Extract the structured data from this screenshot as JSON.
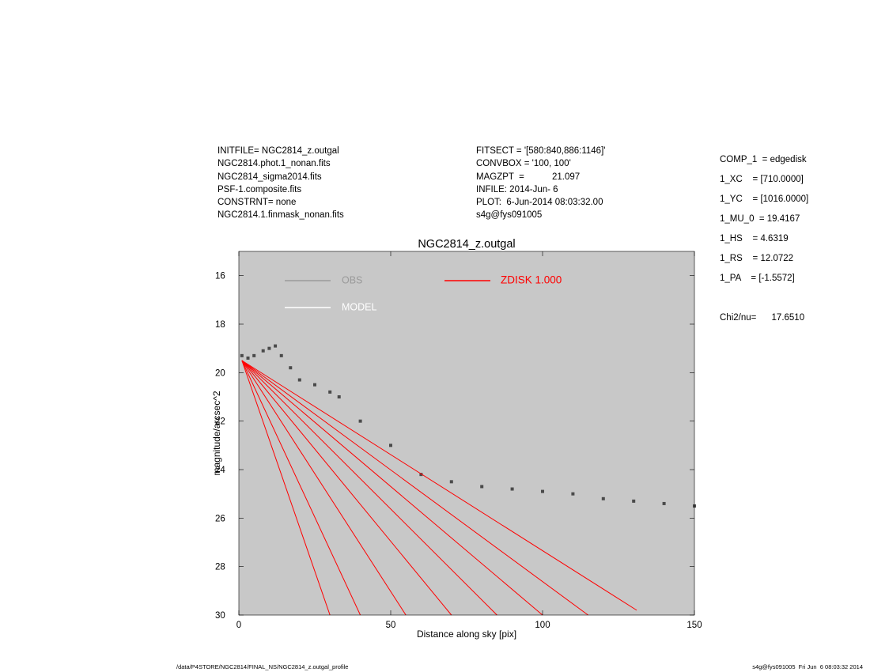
{
  "header_left": [
    "INITFILE= NGC2814_z.outgal",
    "NGC2814.phot.1_nonan.fits",
    "NGC2814_sigma2014.fits",
    "PSF-1.composite.fits",
    "CONSTRNT= none",
    "NGC2814.1.finmask_nonan.fits"
  ],
  "header_mid": [
    "FITSECT = '[580:840,886:1146]'",
    "CONVBOX = '100, 100'",
    "MAGZPT  =           21.097",
    "INFILE: 2014-Jun- 6",
    "PLOT:  6-Jun-2014 08:03:32.00",
    "s4g@fys091005"
  ],
  "params": [
    "COMP_1  = edgedisk",
    "1_XC    = [710.0000]",
    "1_YC    = [1016.0000]",
    "1_MU_0  = 19.4167",
    "1_HS    = 4.6319",
    "1_RS    = 12.0722",
    "1_PA    = [-1.5572]",
    "",
    "Chi2/nu=      17.6510"
  ],
  "footer": {
    "left": "/data/P4STORE/NGC2814/FINAL_NS/NGC2814_z.outgal_profile",
    "right": "s4g@fys091005  Fri Jun  6 08:03:32 2014"
  },
  "colors": {
    "background": "#c8c8c8",
    "obs": "#4a4a4a",
    "obs_legend": "#9a9a9a",
    "model": "#ffffff",
    "component": "#ff0000"
  },
  "chart_data": {
    "type": "scatter",
    "title": "NGC2814_z.outgal",
    "xlabel": "Distance along sky [pix]",
    "ylabel": "magnitude/arcsec^2",
    "xlim": [
      0,
      150
    ],
    "ylim": [
      30,
      15
    ],
    "y_inverted": true,
    "grid": false,
    "x_ticks": [
      0,
      50,
      100,
      150
    ],
    "y_ticks": [
      16,
      18,
      20,
      22,
      24,
      26,
      28,
      30
    ],
    "legend": [
      {
        "label": "OBS",
        "color": "#9a9a9a"
      },
      {
        "label": "MODEL",
        "color": "#ffffff"
      },
      {
        "label": "ZDISK  1.000",
        "color": "#ff0000"
      }
    ],
    "legend_position": "top",
    "series": [
      {
        "name": "OBS",
        "kind": "points",
        "x": [
          1,
          3,
          5,
          8,
          10,
          12,
          14,
          17,
          20,
          25,
          30,
          33,
          40,
          50,
          60,
          70,
          80,
          90,
          100,
          110,
          120,
          130,
          140,
          150
        ],
        "y": [
          19.3,
          19.4,
          19.3,
          19.1,
          19.0,
          18.9,
          19.3,
          19.8,
          20.3,
          20.5,
          20.8,
          21.0,
          22.0,
          23.0,
          24.2,
          24.5,
          24.7,
          24.8,
          24.9,
          25.0,
          25.2,
          25.3,
          25.4,
          25.5
        ]
      },
      {
        "name": "ZDISK  1.000",
        "kind": "lines",
        "x": [
          1,
          30,
          1,
          40,
          1,
          55,
          1,
          70,
          1,
          85,
          1,
          100,
          1,
          115,
          1,
          131
        ],
        "y": [
          19.5,
          30,
          19.5,
          30,
          19.5,
          30,
          19.5,
          30,
          19.5,
          30,
          19.5,
          30,
          19.5,
          30,
          19.5,
          29.8
        ]
      }
    ]
  }
}
